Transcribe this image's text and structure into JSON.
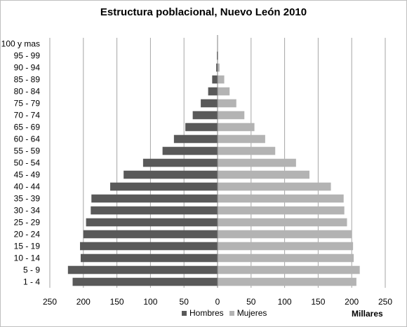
{
  "chart_data": {
    "type": "bar",
    "title": "Estructura poblacional, Nuevo León 2010",
    "xlabel": "Millares",
    "ylabel": "",
    "xlim": [
      -250,
      250
    ],
    "x_ticks": [
      -250,
      -200,
      -150,
      -100,
      -50,
      0,
      50,
      100,
      150,
      200,
      250
    ],
    "x_tick_labels": [
      "250",
      "200",
      "150",
      "100",
      "50",
      "0",
      "50",
      "100",
      "150",
      "200",
      "250"
    ],
    "grid": "vertical",
    "legend_position": "bottom",
    "categories": [
      "1 - 4",
      "5 - 9",
      "10 - 14",
      "15 - 19",
      "20 - 24",
      "25 - 29",
      "30 - 34",
      "35 - 39",
      "40 - 44",
      "45 - 49",
      "50 - 54",
      "55 - 59",
      "60 - 64",
      "65 - 69",
      "70 - 74",
      "75 - 79",
      "80 - 84",
      "85 - 89",
      "90 - 94",
      "95 - 99",
      "100 y mas"
    ],
    "series": [
      {
        "name": "Hombres",
        "color": "#595959",
        "values": [
          -216,
          -223,
          -204,
          -205,
          -200,
          -196,
          -189,
          -188,
          -160,
          -140,
          -111,
          -82,
          -65,
          -48,
          -37,
          -25,
          -14,
          -8,
          -2,
          -1,
          0
        ]
      },
      {
        "name": "Mujeres",
        "color": "#b3b3b3",
        "values": [
          207,
          212,
          203,
          202,
          200,
          193,
          189,
          188,
          169,
          137,
          117,
          86,
          71,
          55,
          40,
          28,
          18,
          10,
          3,
          1,
          0
        ]
      }
    ]
  }
}
